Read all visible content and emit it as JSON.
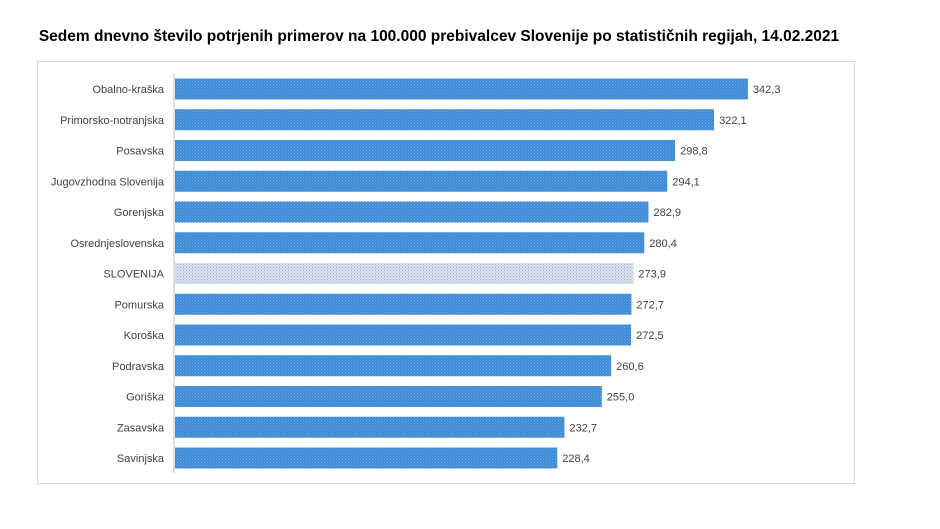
{
  "title": "Sedem dnevno število potrjenih primerov na 100.000  prebivalcev Slovenije po statističnih regijah, 14.02.2021",
  "colors": {
    "bar": "#3d88d4",
    "bar_light": "#6aaee8",
    "highlight": "#9ab0c4",
    "highlight_light": "#dde6ee",
    "axis": "#bfbfbf",
    "label": "#404040"
  },
  "chart_data": {
    "type": "bar",
    "orientation": "horizontal",
    "title": "Sedem dnevno število potrjenih primerov na 100.000  prebivalcev Slovenije po statističnih regijah, 14.02.2021",
    "xlabel": "",
    "ylabel": "",
    "xlim": [
      0,
      350
    ],
    "grid": false,
    "legend": "none",
    "highlight_category": "SLOVENIJA",
    "categories": [
      "Obalno-kraška",
      "Primorsko-notranjska",
      "Posavska",
      "Jugovzhodna Slovenija",
      "Gorenjska",
      "Osrednjeslovenska",
      "SLOVENIJA",
      "Pomurska",
      "Koroška",
      "Podravska",
      "Goriška",
      "Zasavska",
      "Savinjska"
    ],
    "values": [
      342.3,
      322.1,
      298.8,
      294.1,
      282.9,
      280.4,
      273.9,
      272.7,
      272.5,
      260.6,
      255.0,
      232.7,
      228.4
    ],
    "value_labels": [
      "342,3",
      "322,1",
      "298,8",
      "294,1",
      "282,9",
      "280,4",
      "273,9",
      "272,7",
      "272,5",
      "260,6",
      "255,0",
      "232,7",
      "228,4"
    ]
  }
}
